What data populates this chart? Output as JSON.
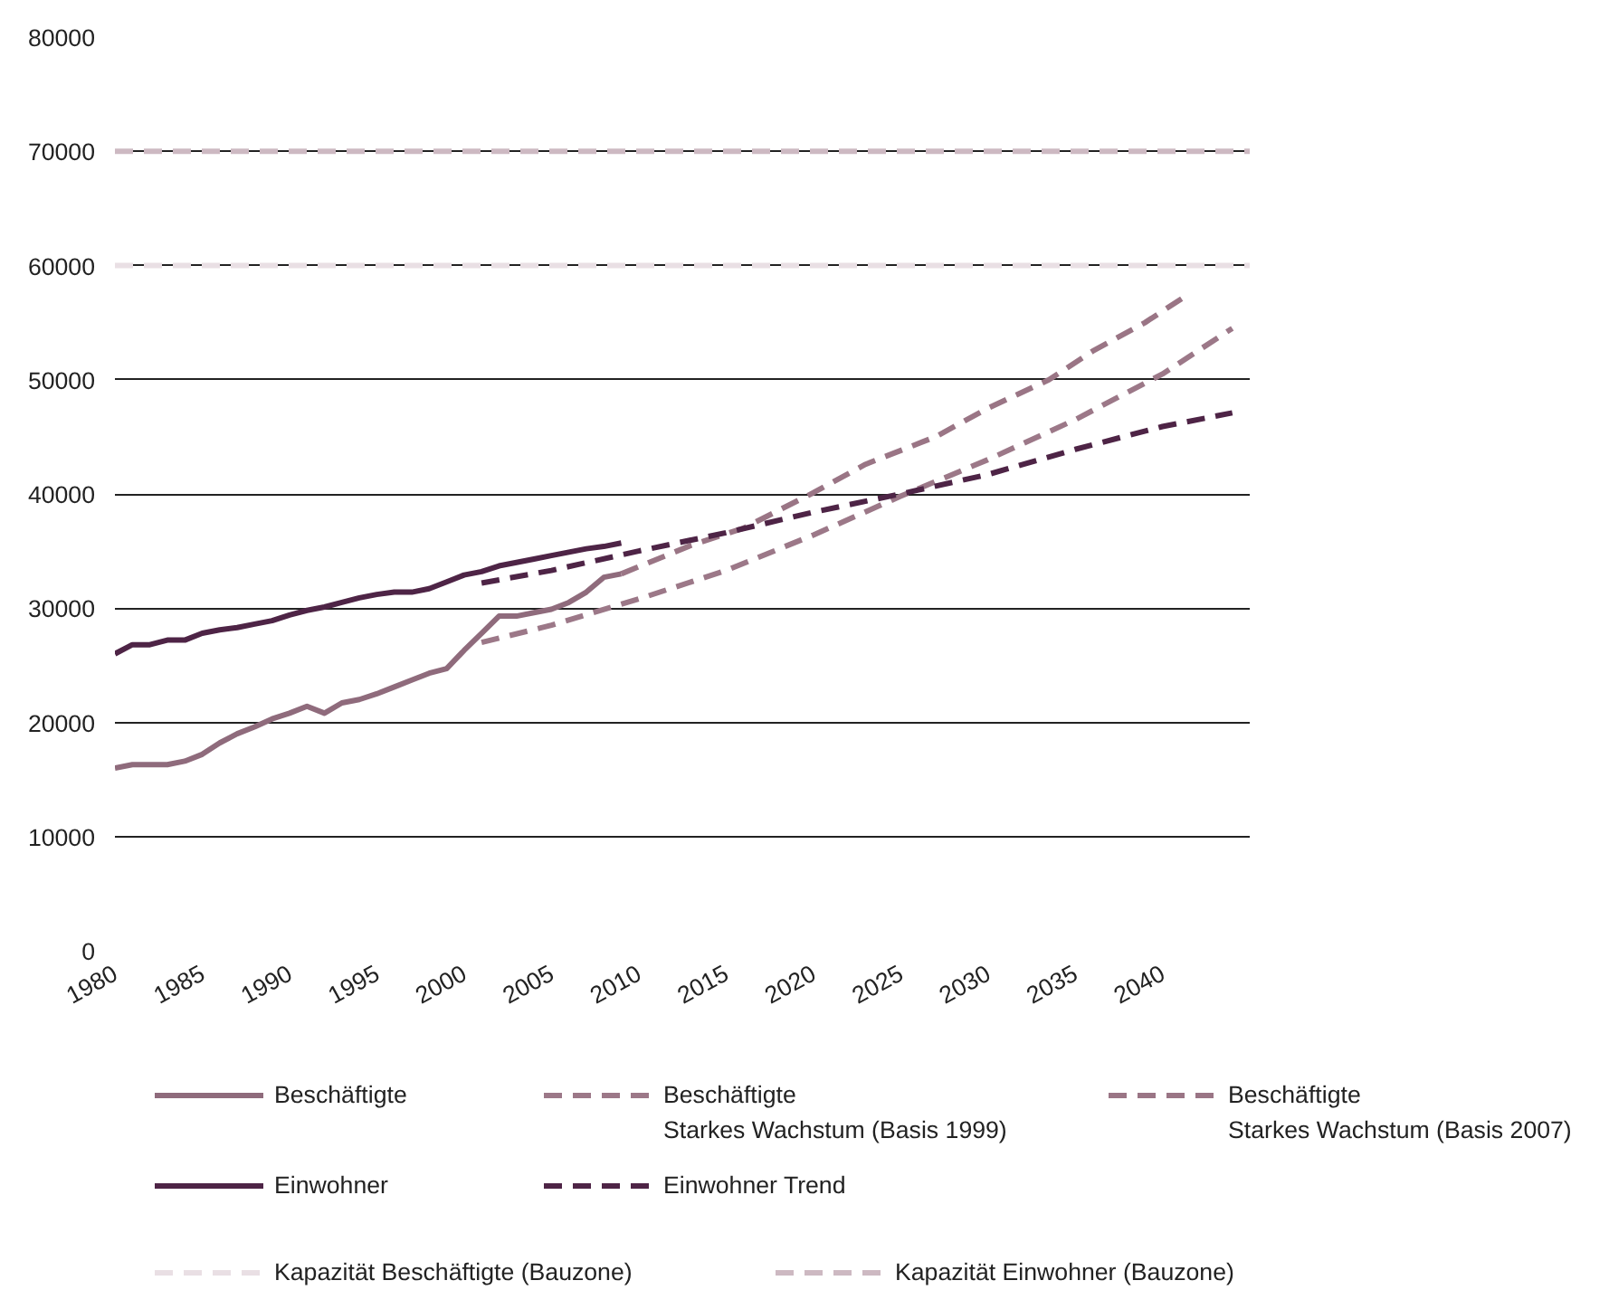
{
  "chart_data": {
    "type": "line",
    "xlim": [
      1980,
      2045
    ],
    "xticks": [
      1980,
      1985,
      1990,
      1995,
      2000,
      2005,
      2010,
      2015,
      2020,
      2025,
      2030,
      2035,
      2040
    ],
    "ylim": [
      0,
      80000
    ],
    "yticks": [
      0,
      10000,
      20000,
      30000,
      40000,
      50000,
      60000,
      70000,
      80000
    ],
    "grid": "y",
    "legend": "bottom",
    "series": [
      {
        "name": "Beschäftigte",
        "color": "#8f6b7c",
        "line_style": "solid",
        "x": [
          1980,
          1981,
          1982,
          1983,
          1984,
          1985,
          1986,
          1987,
          1988,
          1989,
          1990,
          1991,
          1992,
          1993,
          1994,
          1995,
          1996,
          1997,
          1998,
          1999,
          2000,
          2001,
          2002,
          2003,
          2004,
          2005,
          2006,
          2007,
          2008,
          2009
        ],
        "values": [
          16000,
          16300,
          16300,
          16300,
          16600,
          17200,
          18200,
          19000,
          19600,
          20300,
          20800,
          21400,
          20800,
          21700,
          22000,
          22500,
          23100,
          23700,
          24300,
          24700,
          26300,
          27800,
          29300,
          29300,
          29600,
          29900,
          30500,
          31400,
          32700,
          33000
        ]
      },
      {
        "name": "Beschäftigte\nStarkes Wachstum (Basis 1999)",
        "color": "#9c7888",
        "line_style": "dashed",
        "x": [
          2001,
          2005,
          2010,
          2015,
          2020,
          2025,
          2030,
          2035,
          2040,
          2044
        ],
        "values": [
          27000,
          28500,
          30800,
          33300,
          36400,
          39800,
          43000,
          46500,
          50500,
          54500
        ]
      },
      {
        "name": "Beschäftigte\nStarkes Wachstum (Basis 2007)",
        "color": "#9a7585",
        "line_style": "dashed",
        "x": [
          2009,
          2013,
          2016,
          2020,
          2023,
          2027,
          2030,
          2033.5,
          2036,
          2039,
          2041.3
        ],
        "values": [
          33000,
          35500,
          37000,
          40100,
          42600,
          45000,
          47500,
          50000,
          52500,
          55000,
          57300
        ]
      },
      {
        "name": "Einwohner",
        "color": "#4e2446",
        "line_style": "solid",
        "x": [
          1980,
          1981,
          1982,
          1983,
          1984,
          1985,
          1986,
          1987,
          1988,
          1989,
          1990,
          1991,
          1992,
          1993,
          1994,
          1995,
          1996,
          1997,
          1998,
          1999,
          2000,
          2001,
          2002,
          2003,
          2004,
          2005,
          2006,
          2007,
          2008,
          2009
        ],
        "values": [
          26000,
          26800,
          26800,
          27200,
          27200,
          27800,
          28100,
          28300,
          28600,
          28900,
          29400,
          29800,
          30100,
          30500,
          30900,
          31200,
          31400,
          31400,
          31700,
          32300,
          32900,
          33200,
          33700,
          34000,
          34300,
          34600,
          34900,
          35200,
          35400,
          35700
        ]
      },
      {
        "name": "Einwohner Trend",
        "color": "#4e2446",
        "line_style": "dashed",
        "x": [
          2001,
          2005,
          2010,
          2015,
          2020,
          2025,
          2030,
          2035,
          2040,
          2044
        ],
        "values": [
          32200,
          33300,
          35000,
          36600,
          38400,
          40000,
          41700,
          43900,
          45900,
          47100
        ]
      },
      {
        "name": "Kapazität Beschäftigte (Bauzone)",
        "color": "#e9dfe4",
        "line_style": "dashed",
        "x": [
          1980,
          2045
        ],
        "values": [
          60000,
          60000
        ]
      },
      {
        "name": "Kapazität Einwohner (Bauzone)",
        "color": "#cdb9c2",
        "line_style": "dashed",
        "x": [
          1980,
          2045
        ],
        "values": [
          70000,
          70000
        ]
      }
    ]
  }
}
